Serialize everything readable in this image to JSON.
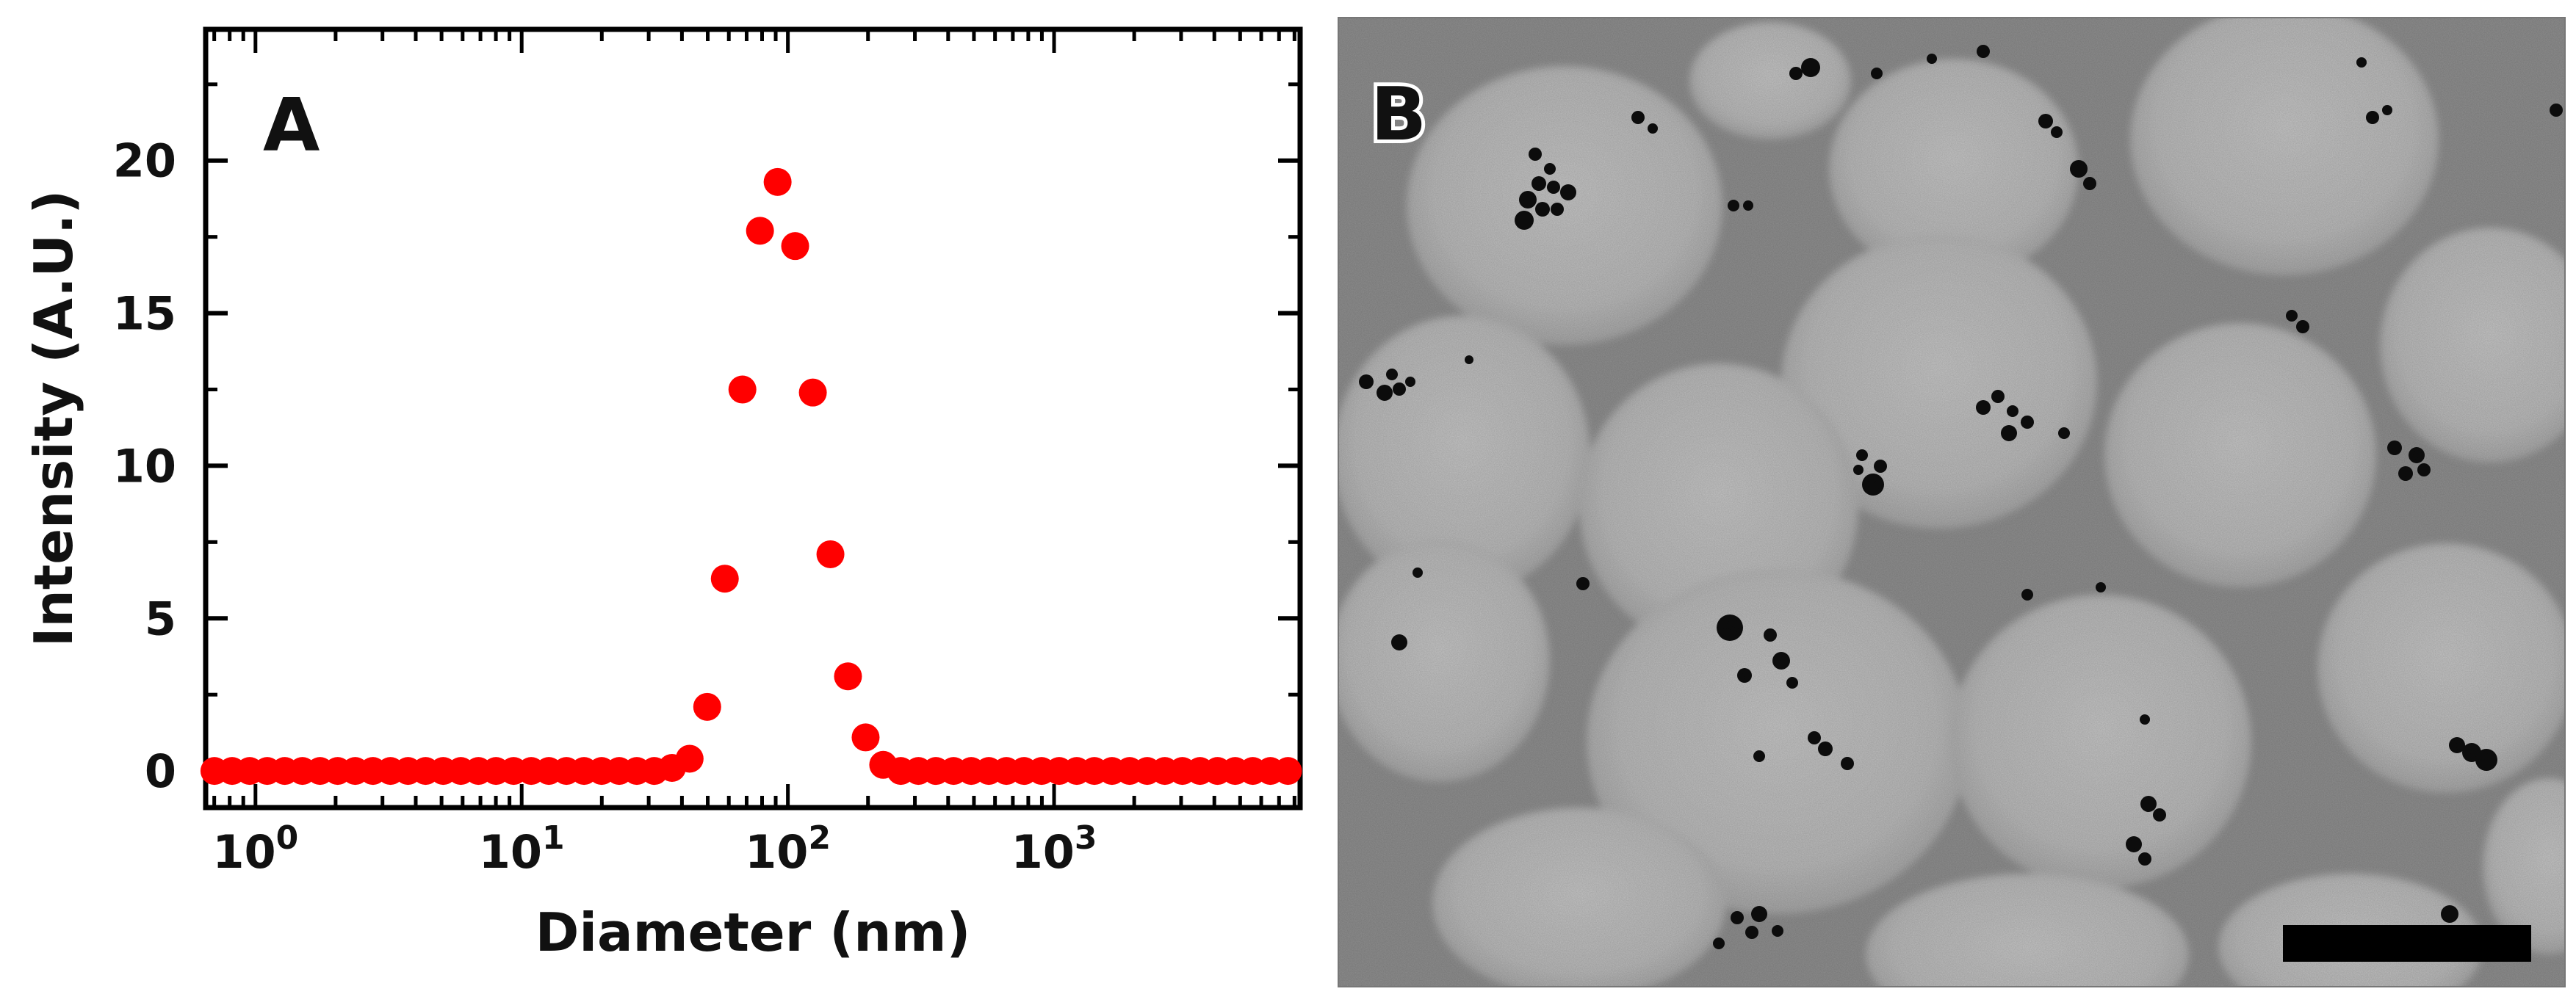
{
  "panels": {
    "a": {
      "label": "A"
    },
    "b": {
      "label": "B"
    }
  },
  "chart_data": {
    "type": "scatter",
    "xscale": "log",
    "xlabel": "Diameter (nm)",
    "ylabel": "Intensity (A.U.)",
    "xlim": [
      0.65,
      8400
    ],
    "ylim": [
      -1.2,
      24.3
    ],
    "grid": false,
    "legend": "none",
    "marker_color": "#ff0000",
    "x_ticks": [
      {
        "value": 1,
        "base": "10",
        "exp": "0"
      },
      {
        "value": 10,
        "base": "10",
        "exp": "1"
      },
      {
        "value": 100,
        "base": "10",
        "exp": "2"
      },
      {
        "value": 1000,
        "base": "10",
        "exp": "3"
      }
    ],
    "y_ticks": [
      {
        "value": 0,
        "label": "0"
      },
      {
        "value": 5,
        "label": "5"
      },
      {
        "value": 10,
        "label": "10"
      },
      {
        "value": 15,
        "label": "15"
      },
      {
        "value": 20,
        "label": "20"
      }
    ],
    "x": [
      0.701,
      0.817,
      0.951,
      1.107,
      1.289,
      1.501,
      1.748,
      2.036,
      2.37,
      2.76,
      3.214,
      3.742,
      4.357,
      5.074,
      5.908,
      6.879,
      8.01,
      9.327,
      10.86,
      12.65,
      14.73,
      17.15,
      19.97,
      23.25,
      27.07,
      31.52,
      36.71,
      42.74,
      49.77,
      57.95,
      67.48,
      78.58,
      91.5,
      106.5,
      124.1,
      144.5,
      168.2,
      195.9,
      228.1,
      265.6,
      309.3,
      360.1,
      419.3,
      488.3,
      568.6,
      662.1,
      770.9,
      897.7,
      1045,
      1217,
      1417,
      1650,
      1922,
      2238,
      2606,
      3034,
      3533,
      4114,
      4790,
      5578,
      6495,
      7563
    ],
    "values": [
      0,
      0,
      0,
      0,
      0,
      0,
      0,
      0,
      0,
      0,
      0,
      0,
      0,
      0,
      0,
      0,
      0,
      0,
      0,
      0,
      0,
      0,
      0,
      0,
      0,
      0,
      0.1,
      0.4,
      2.1,
      6.3,
      12.5,
      17.7,
      19.3,
      17.2,
      12.4,
      7.1,
      3.1,
      1.1,
      0.2,
      0,
      0,
      0,
      0,
      0,
      0,
      0,
      0,
      0,
      0,
      0,
      0,
      0,
      0,
      0,
      0,
      0,
      0,
      0,
      0,
      0,
      0,
      0
    ]
  }
}
